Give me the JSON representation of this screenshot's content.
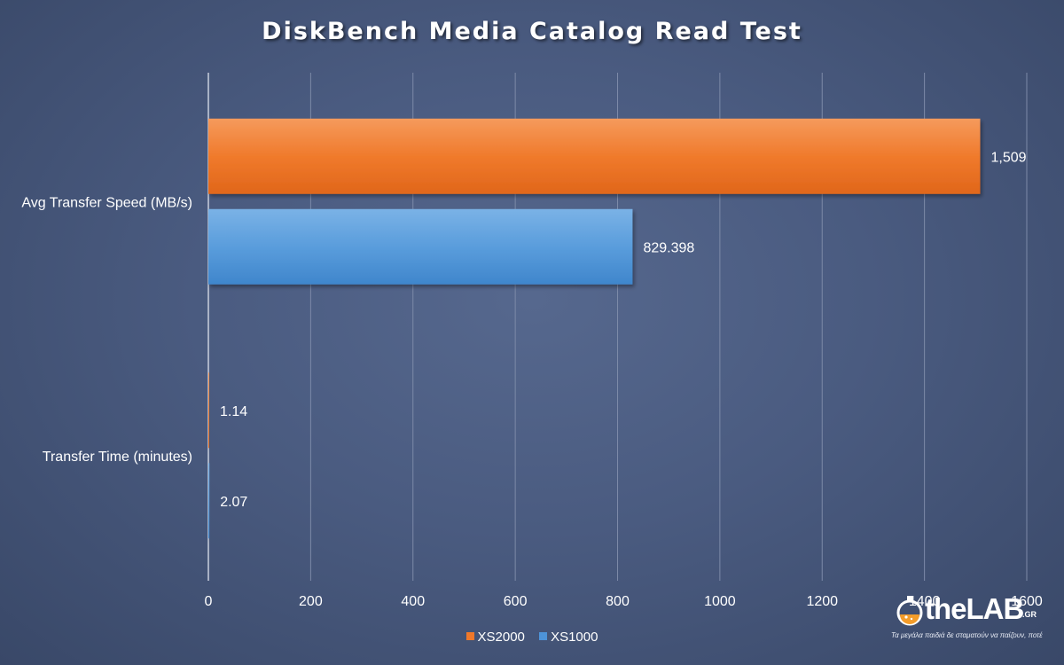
{
  "chart_data": {
    "type": "bar",
    "orientation": "horizontal",
    "title": "DiskBench Media Catalog Read Test",
    "categories": [
      "Avg Transfer Speed (MB/s)",
      "Transfer Time (minutes)"
    ],
    "series": [
      {
        "name": "XS2000",
        "color": "#f0782a",
        "values": [
          1509,
          1.14
        ],
        "labels": [
          "1,509",
          "1.14"
        ]
      },
      {
        "name": "XS1000",
        "color": "#4d93d9",
        "values": [
          829.398,
          2.07
        ],
        "labels": [
          "829.398",
          "2.07"
        ]
      }
    ],
    "xlim": [
      0,
      1600
    ],
    "xticks": [
      "0",
      "200",
      "400",
      "600",
      "800",
      "1000",
      "1200",
      "1400",
      "1600"
    ],
    "grid": true,
    "legend_position": "bottom"
  },
  "watermark": {
    "brand_prefix": "the",
    "brand_main": "LAB",
    "brand_tld": ".GR",
    "tagline": "Τα μεγάλα παιδιά δε σταματούν να παίζουν, ποτέ"
  }
}
